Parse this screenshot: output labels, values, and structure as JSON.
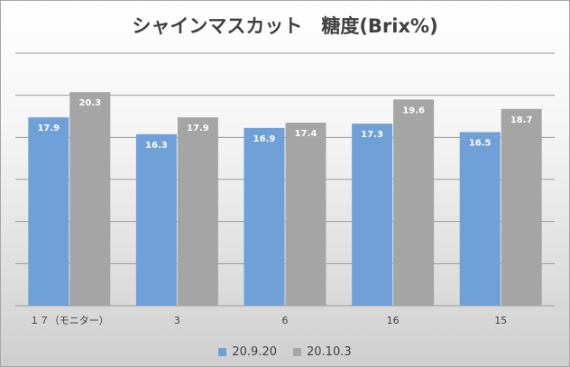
{
  "chart_data": {
    "type": "bar",
    "title": "シャインマスカット　糖度(Brix%)",
    "categories": [
      "１７（モニター）",
      "3",
      "6",
      "16",
      "15"
    ],
    "series": [
      {
        "name": "20.9.20",
        "values": [
          17.9,
          16.3,
          16.9,
          17.3,
          16.5
        ],
        "color": "#6fa0d8"
      },
      {
        "name": "20.10.3",
        "values": [
          20.3,
          17.9,
          17.4,
          19.6,
          18.7
        ],
        "color": "#a5a5a5"
      }
    ],
    "ylim": [
      0,
      24
    ],
    "grid": true,
    "legend_position": "bottom"
  }
}
